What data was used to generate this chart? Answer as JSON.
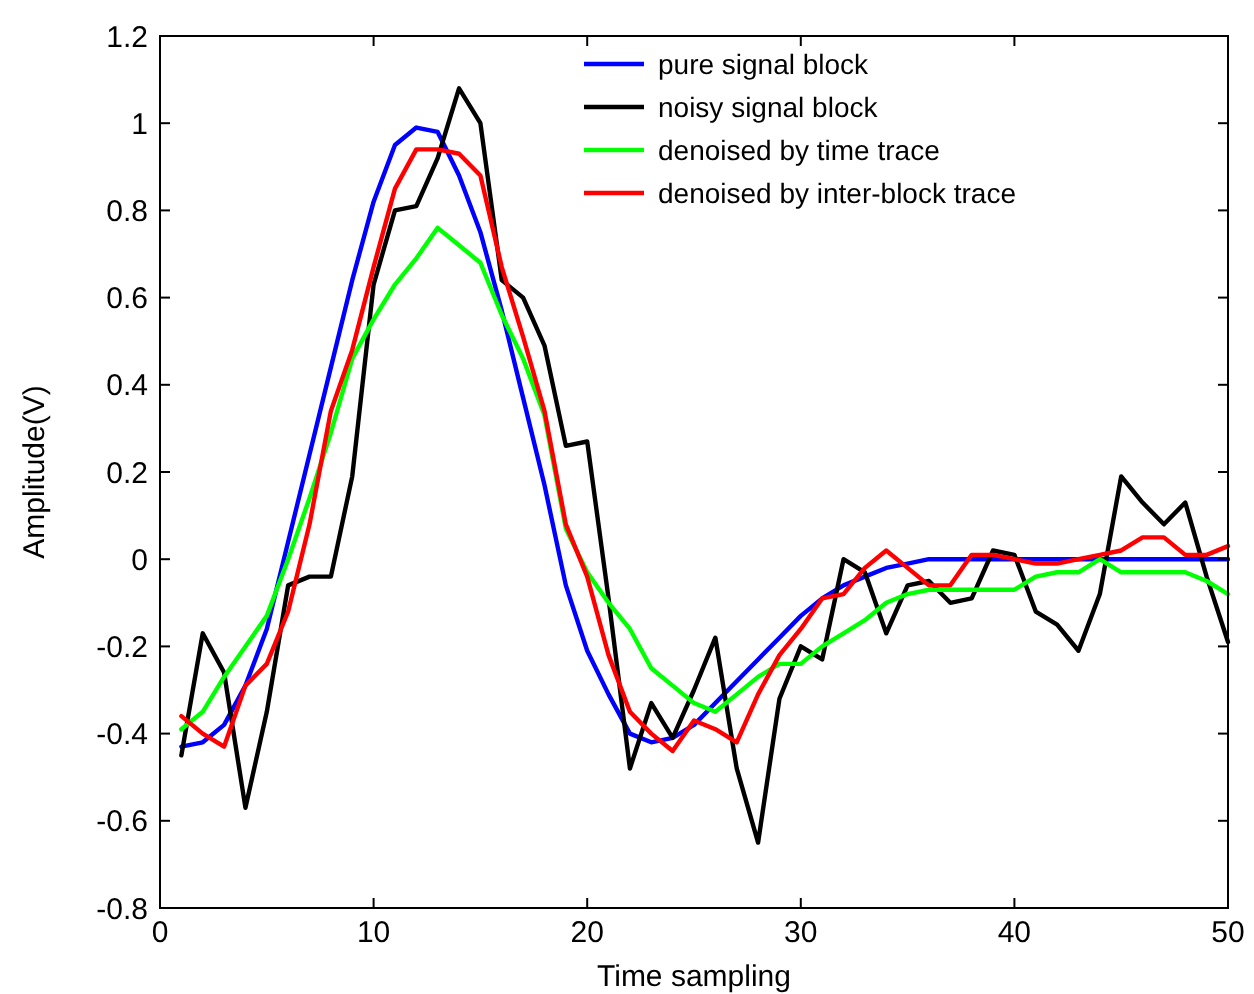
{
  "chart_data": {
    "type": "line",
    "xlabel": "Time sampling",
    "ylabel": "Amplitude(V)",
    "x": [
      1,
      2,
      3,
      4,
      5,
      6,
      7,
      8,
      9,
      10,
      11,
      12,
      13,
      14,
      15,
      16,
      17,
      18,
      19,
      20,
      21,
      22,
      23,
      24,
      25,
      26,
      27,
      28,
      29,
      30,
      31,
      32,
      33,
      34,
      35,
      36,
      37,
      38,
      39,
      40,
      41,
      42,
      43,
      44,
      45,
      46,
      47,
      48,
      49,
      50
    ],
    "xlim": [
      0,
      50
    ],
    "xticks": [
      0,
      10,
      20,
      30,
      40,
      50
    ],
    "ylim": [
      -0.8,
      1.2
    ],
    "yticks": [
      -0.8,
      -0.6,
      -0.4,
      -0.2,
      0,
      0.2,
      0.4,
      0.6,
      0.8,
      1,
      1.2
    ],
    "grid": false,
    "legend": "top right",
    "marker": "none",
    "line_style": "solid",
    "series": [
      {
        "name": "pure signal block",
        "color": "#0000ff",
        "values": [
          -0.43,
          -0.42,
          -0.38,
          -0.29,
          -0.16,
          0.04,
          0.24,
          0.44,
          0.64,
          0.82,
          0.95,
          0.99,
          0.98,
          0.88,
          0.75,
          0.57,
          0.37,
          0.17,
          -0.06,
          -0.21,
          -0.31,
          -0.4,
          -0.42,
          -0.41,
          -0.38,
          -0.33,
          -0.28,
          -0.23,
          -0.18,
          -0.13,
          -0.09,
          -0.06,
          -0.04,
          -0.02,
          -0.01,
          0,
          0,
          0,
          0,
          0,
          0,
          0,
          0,
          0,
          0,
          0,
          0,
          0,
          0,
          0
        ]
      },
      {
        "name": "noisy signal block",
        "color": "#000000",
        "values": [
          -0.45,
          -0.17,
          -0.26,
          -0.57,
          -0.35,
          -0.06,
          -0.04,
          -0.04,
          0.19,
          0.63,
          0.8,
          0.81,
          0.92,
          1.08,
          1,
          0.64,
          0.6,
          0.49,
          0.26,
          0.27,
          -0.09,
          -0.48,
          -0.33,
          -0.41,
          -0.3,
          -0.18,
          -0.48,
          -0.65,
          -0.32,
          -0.2,
          -0.23,
          0,
          -0.03,
          -0.17,
          -0.06,
          -0.05,
          -0.1,
          -0.09,
          0.02,
          0.01,
          -0.12,
          -0.15,
          -0.21,
          -0.08,
          0.19,
          0.13,
          0.08,
          0.13,
          -0.04,
          -0.19
        ]
      },
      {
        "name": "denoised by time trace",
        "color": "#00ff00",
        "values": [
          -0.39,
          -0.35,
          -0.27,
          -0.2,
          -0.13,
          0,
          0.14,
          0.29,
          0.46,
          0.55,
          0.63,
          0.69,
          0.76,
          0.72,
          0.68,
          0.56,
          0.46,
          0.33,
          0.07,
          -0.03,
          -0.1,
          -0.16,
          -0.25,
          -0.29,
          -0.33,
          -0.35,
          -0.31,
          -0.27,
          -0.24,
          -0.24,
          -0.2,
          -0.17,
          -0.14,
          -0.1,
          -0.08,
          -0.07,
          -0.07,
          -0.07,
          -0.07,
          -0.07,
          -0.04,
          -0.03,
          -0.03,
          0,
          -0.03,
          -0.03,
          -0.03,
          -0.03,
          -0.05,
          -0.08
        ]
      },
      {
        "name": "denoised by inter-block trace",
        "color": "#ff0000",
        "values": [
          -0.36,
          -0.4,
          -0.43,
          -0.29,
          -0.24,
          -0.12,
          0.08,
          0.34,
          0.48,
          0.67,
          0.85,
          0.94,
          0.94,
          0.93,
          0.88,
          0.67,
          0.51,
          0.34,
          0.08,
          -0.04,
          -0.22,
          -0.35,
          -0.4,
          -0.44,
          -0.37,
          -0.39,
          -0.42,
          -0.31,
          -0.22,
          -0.16,
          -0.09,
          -0.08,
          -0.02,
          0.02,
          -0.02,
          -0.06,
          -0.06,
          0.01,
          0.01,
          0,
          -0.01,
          -0.01,
          0,
          0.01,
          0.02,
          0.05,
          0.05,
          0.01,
          0.01,
          0.03
        ]
      }
    ]
  }
}
